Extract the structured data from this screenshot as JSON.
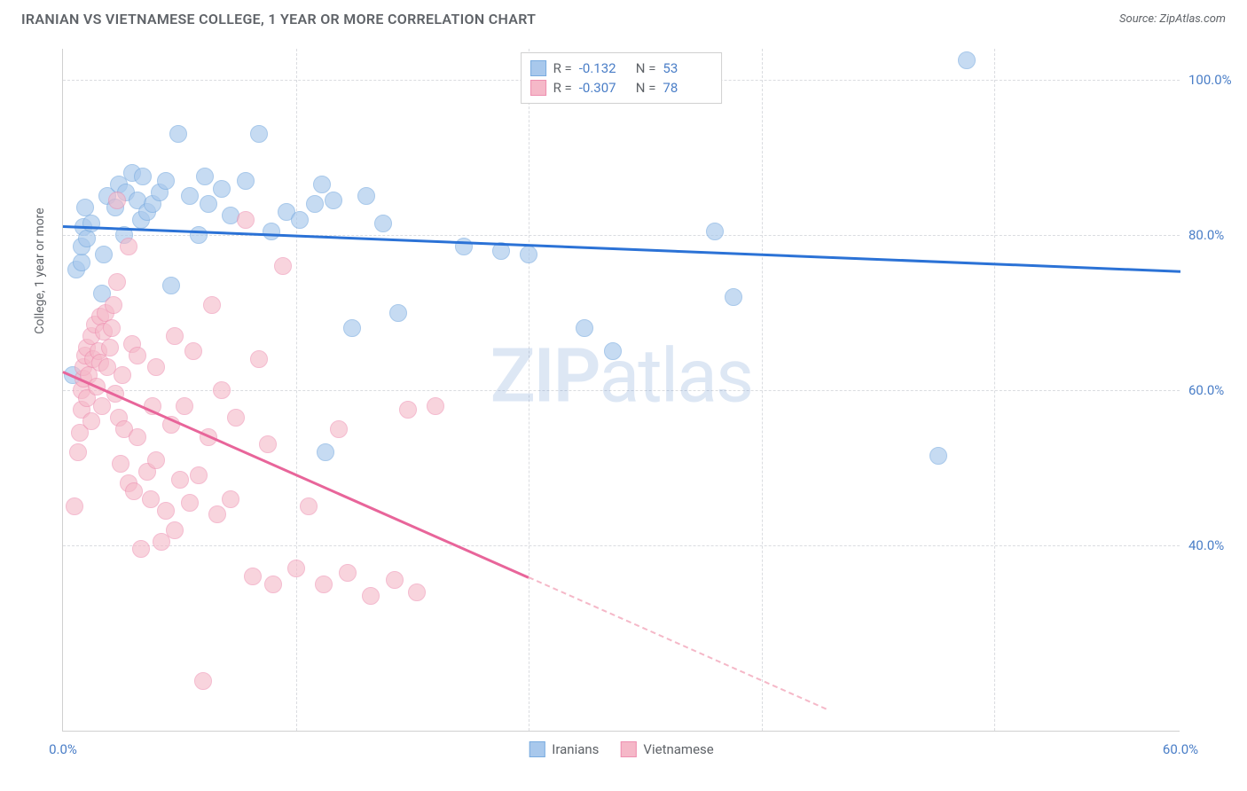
{
  "header": {
    "title": "IRANIAN VS VIETNAMESE COLLEGE, 1 YEAR OR MORE CORRELATION CHART",
    "source": "Source: ZipAtlas.com"
  },
  "chart": {
    "type": "scatter",
    "y_axis_title": "College, 1 year or more",
    "watermark_bold": "ZIP",
    "watermark_rest": "atlas",
    "background_color": "#ffffff",
    "grid_color": "#dadce0",
    "axis_color": "#d0d0d0",
    "tick_label_color": "#4a7ec7",
    "tick_fontsize": 15,
    "title_color": "#5f6368",
    "xlim": [
      0,
      60
    ],
    "ylim": [
      16,
      104
    ],
    "x_ticks": [
      {
        "value": 0,
        "label": "0.0%"
      },
      {
        "value": 60,
        "label": "60.0%"
      }
    ],
    "x_gridlines": [
      12.5,
      25,
      37.5,
      50
    ],
    "y_ticks": [
      {
        "value": 40,
        "label": "40.0%"
      },
      {
        "value": 60,
        "label": "60.0%"
      },
      {
        "value": 80,
        "label": "80.0%"
      },
      {
        "value": 100,
        "label": "100.0%"
      }
    ],
    "series": [
      {
        "name": "Iranians",
        "marker_color": "#a8c8ec",
        "marker_border": "#7aace0",
        "marker_opacity": 0.65,
        "marker_radius": 10,
        "trend": {
          "x1": 0,
          "y1": 81.3,
          "x2": 60,
          "y2": 75.5,
          "color": "#2b72d6",
          "width": 2.5
        },
        "R": "-0.132",
        "N": "53",
        "points": [
          [
            0.5,
            62
          ],
          [
            0.7,
            75.5
          ],
          [
            1,
            76.5
          ],
          [
            1,
            78.5
          ],
          [
            1.1,
            81
          ],
          [
            1.2,
            83.5
          ],
          [
            1.3,
            79.5
          ],
          [
            1.5,
            81.5
          ],
          [
            2.1,
            72.5
          ],
          [
            2.2,
            77.5
          ],
          [
            2.4,
            85
          ],
          [
            2.8,
            83.5
          ],
          [
            3,
            86.5
          ],
          [
            3.3,
            80
          ],
          [
            3.4,
            85.5
          ],
          [
            3.7,
            88
          ],
          [
            4,
            84.5
          ],
          [
            4.2,
            82
          ],
          [
            4.3,
            87.5
          ],
          [
            4.5,
            83
          ],
          [
            4.8,
            84
          ],
          [
            5.2,
            85.5
          ],
          [
            5.5,
            87
          ],
          [
            5.8,
            73.5
          ],
          [
            6.2,
            93
          ],
          [
            6.8,
            85
          ],
          [
            7.3,
            80
          ],
          [
            7.6,
            87.5
          ],
          [
            7.8,
            84
          ],
          [
            8.5,
            86
          ],
          [
            9,
            82.5
          ],
          [
            9.8,
            87
          ],
          [
            10.5,
            93
          ],
          [
            11.2,
            80.5
          ],
          [
            12,
            83
          ],
          [
            12.7,
            82
          ],
          [
            13.5,
            84
          ],
          [
            13.9,
            86.5
          ],
          [
            14.1,
            52
          ],
          [
            14.5,
            84.5
          ],
          [
            15.5,
            68
          ],
          [
            16.3,
            85
          ],
          [
            17.2,
            81.5
          ],
          [
            18,
            70
          ],
          [
            21.5,
            78.5
          ],
          [
            23.5,
            78
          ],
          [
            25,
            77.5
          ],
          [
            28,
            68
          ],
          [
            29.5,
            65
          ],
          [
            35,
            80.5
          ],
          [
            36,
            72
          ],
          [
            47,
            51.5
          ],
          [
            48.5,
            102.5
          ]
        ]
      },
      {
        "name": "Vietnamese",
        "marker_color": "#f5b8c8",
        "marker_border": "#ee8fb0",
        "marker_opacity": 0.6,
        "marker_radius": 10,
        "trend": {
          "x1": 0,
          "y1": 62.5,
          "x2": 25,
          "y2": 36,
          "color": "#e8659a",
          "width": 2.5
        },
        "trend_dash": {
          "x1": 25,
          "y1": 36,
          "x2": 41,
          "y2": 19,
          "color": "#f5b8c8"
        },
        "R": "-0.307",
        "N": "78",
        "points": [
          [
            0.6,
            45
          ],
          [
            0.8,
            52
          ],
          [
            0.9,
            54.5
          ],
          [
            1,
            57.5
          ],
          [
            1,
            60
          ],
          [
            1.1,
            61.5
          ],
          [
            1.1,
            63
          ],
          [
            1.2,
            64.5
          ],
          [
            1.3,
            65.5
          ],
          [
            1.3,
            59
          ],
          [
            1.4,
            62
          ],
          [
            1.5,
            67
          ],
          [
            1.5,
            56
          ],
          [
            1.6,
            64
          ],
          [
            1.7,
            68.5
          ],
          [
            1.8,
            60.5
          ],
          [
            1.9,
            65
          ],
          [
            2,
            63.5
          ],
          [
            2,
            69.5
          ],
          [
            2.1,
            58
          ],
          [
            2.2,
            67.5
          ],
          [
            2.3,
            70
          ],
          [
            2.4,
            63
          ],
          [
            2.5,
            65.5
          ],
          [
            2.6,
            68
          ],
          [
            2.7,
            71
          ],
          [
            2.8,
            59.5
          ],
          [
            2.9,
            74
          ],
          [
            2.9,
            84.5
          ],
          [
            3,
            56.5
          ],
          [
            3.1,
            50.5
          ],
          [
            3.2,
            62
          ],
          [
            3.3,
            55
          ],
          [
            3.5,
            48
          ],
          [
            3.5,
            78.5
          ],
          [
            3.7,
            66
          ],
          [
            3.8,
            47
          ],
          [
            4,
            54
          ],
          [
            4,
            64.5
          ],
          [
            4.2,
            39.5
          ],
          [
            4.5,
            49.5
          ],
          [
            4.7,
            46
          ],
          [
            4.8,
            58
          ],
          [
            5,
            63
          ],
          [
            5,
            51
          ],
          [
            5.3,
            40.5
          ],
          [
            5.5,
            44.5
          ],
          [
            5.8,
            55.5
          ],
          [
            6,
            42
          ],
          [
            6,
            67
          ],
          [
            6.3,
            48.5
          ],
          [
            6.5,
            58
          ],
          [
            6.8,
            45.5
          ],
          [
            7,
            65
          ],
          [
            7.3,
            49
          ],
          [
            7.5,
            22.5
          ],
          [
            7.8,
            54
          ],
          [
            8,
            71
          ],
          [
            8.3,
            44
          ],
          [
            8.5,
            60
          ],
          [
            9,
            46
          ],
          [
            9.3,
            56.5
          ],
          [
            9.8,
            82
          ],
          [
            10.2,
            36
          ],
          [
            10.5,
            64
          ],
          [
            11,
            53
          ],
          [
            11.3,
            35
          ],
          [
            11.8,
            76
          ],
          [
            12.5,
            37
          ],
          [
            13.2,
            45
          ],
          [
            14,
            35
          ],
          [
            14.8,
            55
          ],
          [
            15.3,
            36.5
          ],
          [
            16.5,
            33.5
          ],
          [
            17.8,
            35.5
          ],
          [
            18.5,
            57.5
          ],
          [
            19,
            34
          ],
          [
            20,
            58
          ]
        ]
      }
    ],
    "legend_top_labels": {
      "R": "R =",
      "N": "N ="
    },
    "legend_bottom": [
      "Iranians",
      "Vietnamese"
    ]
  }
}
